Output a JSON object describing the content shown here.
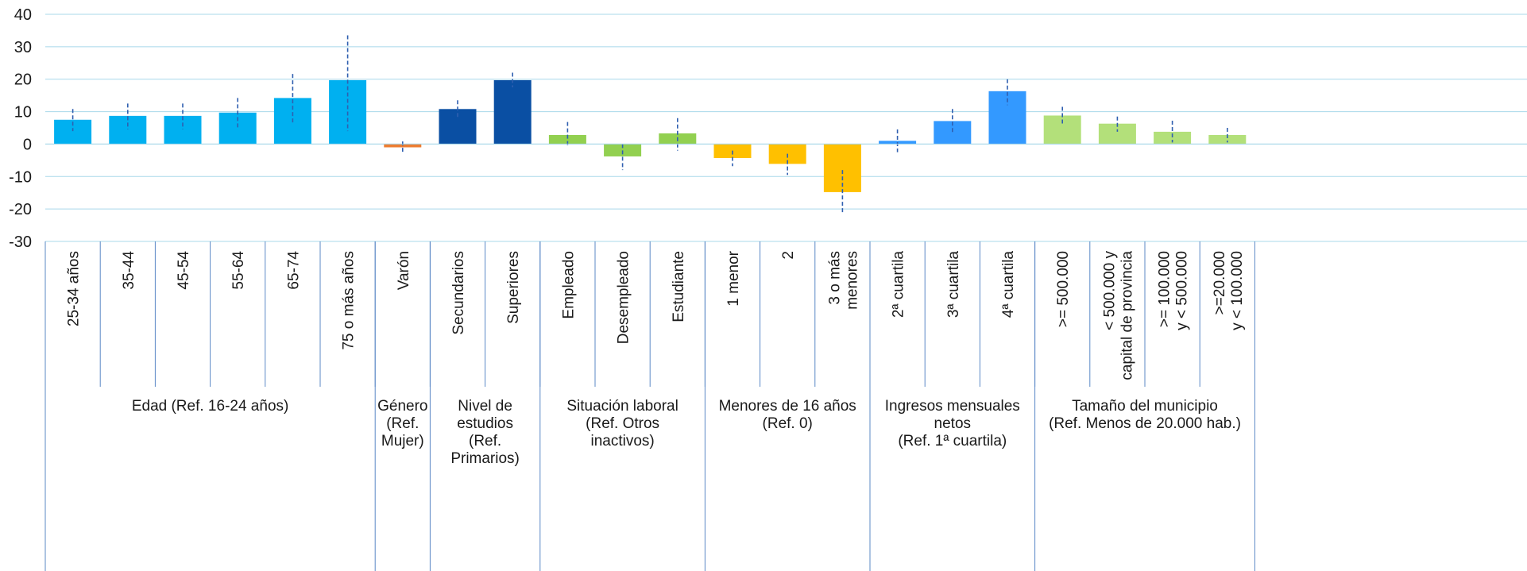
{
  "chart_data": {
    "type": "bar",
    "ylim": [
      -30,
      40
    ],
    "yticks": [
      40,
      30,
      20,
      10,
      0,
      -10,
      -20,
      -30
    ],
    "grid": true,
    "categories": [
      "25-34 años",
      "35-44",
      "45-54",
      "55-64",
      "65-74",
      "75 o más años",
      "Varón",
      "Secundarios",
      "Superiores",
      "Empleado",
      "Desempleado",
      "Estudiante",
      "1 menor",
      "2",
      "3 o más menores",
      "2ª cuartila",
      "3ª cuartila",
      "4ª cuartila",
      ">= 500.000",
      "< 500.000 y capital de provincia",
      ">= 100.000 y < 500.000",
      ">=20.000 y < 100.000"
    ],
    "values": [
      7.5,
      8.7,
      8.7,
      9.7,
      14.2,
      19.7,
      -1.0,
      10.8,
      19.7,
      2.8,
      -3.8,
      3.3,
      -4.3,
      -6.1,
      -14.8,
      1.0,
      7.1,
      16.3,
      8.8,
      6.3,
      3.8,
      2.8
    ],
    "error_low": [
      4.0,
      4.5,
      4.5,
      5.0,
      6.0,
      4.0,
      -2.5,
      8.0,
      17.5,
      -1.0,
      -8.0,
      -2.0,
      -6.8,
      -9.5,
      -21.0,
      -2.5,
      3.5,
      12.0,
      6.0,
      3.8,
      0.5,
      0.5
    ],
    "error_high": [
      10.8,
      12.5,
      12.5,
      14.2,
      21.6,
      33.5,
      0.8,
      13.5,
      22.0,
      6.8,
      0.0,
      8.0,
      -2.0,
      -3.0,
      -8.0,
      4.5,
      10.8,
      20.0,
      11.5,
      8.5,
      7.2,
      5.0
    ],
    "colors": [
      "#00b0f0",
      "#00b0f0",
      "#00b0f0",
      "#00b0f0",
      "#00b0f0",
      "#00b0f0",
      "#ed7d31",
      "#0a4fa3",
      "#0a4fa3",
      "#92d050",
      "#92d050",
      "#92d050",
      "#ffc000",
      "#ffc000",
      "#ffc000",
      "#3399ff",
      "#3399ff",
      "#3399ff",
      "#b3e07a",
      "#b3e07a",
      "#b3e07a",
      "#b3e07a"
    ],
    "groups": [
      {
        "label": "Edad (Ref. 16-24 años)",
        "start": 0,
        "end": 5
      },
      {
        "label": "Género (Ref. Mujer)",
        "start": 6,
        "end": 6
      },
      {
        "label": "Nivel de estudios (Ref. Primarios)",
        "start": 7,
        "end": 8
      },
      {
        "label": "Situación laboral (Ref. Otros inactivos)",
        "start": 9,
        "end": 11
      },
      {
        "label": "Menores de 16 años (Ref. 0)",
        "start": 12,
        "end": 14
      },
      {
        "label": "Ingresos mensuales netos (Ref. 1ª cuartila)",
        "start": 15,
        "end": 17
      },
      {
        "label": "Tamaño del municipio (Ref. Menos de 20.000 hab.)",
        "start": 18,
        "end": 21
      }
    ]
  }
}
